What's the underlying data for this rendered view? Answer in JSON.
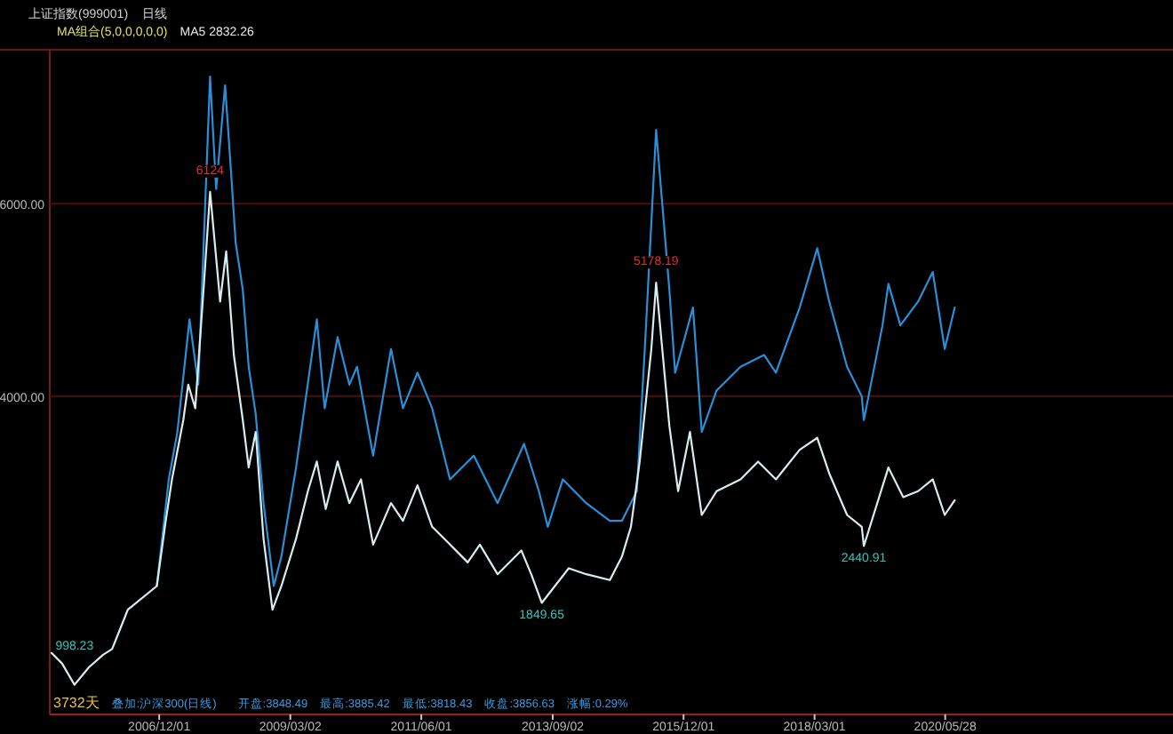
{
  "chart_data": {
    "type": "line",
    "title": "上证指数(999001)",
    "annotations": [
      "日线",
      "MA组合(5,0,0,0,0,0)",
      "MA5 2832.26",
      "3732天",
      "叠加:沪深300(日线)",
      "开盘:3848.49",
      "最高:3885.42",
      "最低:3818.43",
      "收盘:3856.63",
      "涨幅:0.29%",
      {
        "text": "6124",
        "x": "2007-10-16",
        "y": 6124
      },
      {
        "text": "5178.19",
        "x": "2015-06-12",
        "y": 5178.19
      },
      {
        "text": "1849.65",
        "x": "2013-06-25",
        "y": 1849.65
      },
      {
        "text": "2440.91",
        "x": "2019-01-04",
        "y": 2440.91
      },
      {
        "text": "998.23",
        "x": "2005-06-18",
        "y": 998.23
      }
    ],
    "xlim": [
      "2005-01-14",
      "2024-04-25"
    ],
    "xticks": [
      {
        "value": "2006-12-01",
        "label": "2006/12/01"
      },
      {
        "value": "2009-03-02",
        "label": "2009/03/02"
      },
      {
        "value": "2011-06-01",
        "label": "2011/06/01"
      },
      {
        "value": "2013-09-02",
        "label": "2013/09/02"
      },
      {
        "value": "2015-12-01",
        "label": "2015/12/01"
      },
      {
        "value": "2018-03-01",
        "label": "2018/03/01"
      },
      {
        "value": "2020-05-28",
        "label": "2020/05/28"
      }
    ],
    "ylim": [
      690,
      7600
    ],
    "yticks": [
      {
        "value": 4000,
        "label": "4000.00"
      },
      {
        "value": 6000,
        "label": "6000.00"
      }
    ],
    "grid": "y",
    "marker": "none",
    "line_style": "solid",
    "series": [
      {
        "color": "#2b8fd8",
        "x": [
          "2006-11-16",
          "2007-01-30",
          "2007-03-25",
          "2007-06-09",
          "2007-08-03",
          "2007-10-16",
          "2007-11-23",
          "2008-01-18",
          "2008-02-24",
          "2008-03-24",
          "2008-05-08",
          "2008-06-14",
          "2008-07-28",
          "2008-09-15",
          "2008-11-18",
          "2009-01-05",
          "2009-04-07",
          "2009-08-15",
          "2009-10-03",
          "2009-12-23",
          "2010-03-07",
          "2010-04-24",
          "2010-08-03",
          "2010-11-23",
          "2011-02-06",
          "2011-05-08",
          "2011-08-08",
          "2011-11-28",
          "2012-04-25",
          "2012-09-21",
          "2013-03-06",
          "2013-06-07",
          "2013-08-02",
          "2013-11-04",
          "2014-03-31",
          "2014-08-26",
          "2014-11-10",
          "2015-02-11",
          "2015-04-06",
          "2015-06-12",
          "2015-09-03",
          "2015-10-09",
          "2016-01-29",
          "2016-03-24",
          "2016-06-25",
          "2016-11-22",
          "2017-04-18",
          "2017-07-02",
          "2017-11-28",
          "2018-03-18",
          "2018-06-01",
          "2018-09-21",
          "2018-12-22",
          "2019-01-04",
          "2019-05-01",
          "2019-06-07",
          "2019-08-21",
          "2019-12-10",
          "2020-03-11",
          "2020-05-25",
          "2020-07-27"
        ],
        "values": [
          2025,
          3134,
          3627,
          4797,
          4119,
          7323,
          6152,
          7230,
          6337,
          5598,
          5105,
          4304,
          3811,
          2887,
          2025,
          2333,
          3257,
          4797,
          3873,
          4612,
          4119,
          4304,
          3380,
          4489,
          3873,
          4243,
          3873,
          3134,
          3380,
          2887,
          3503,
          3011,
          2641,
          3134,
          2887,
          2703,
          2703,
          3011,
          4612,
          6768,
          5105,
          4243,
          4920,
          3627,
          4058,
          4304,
          4427,
          4243,
          4920,
          5536,
          4982,
          4304,
          3996,
          3750,
          4735,
          5167,
          4735,
          4982,
          5290,
          4489,
          4920
        ]
      },
      {
        "color": "#d8eeee",
        "x": [
          "2005-01-25",
          "2005-04-01",
          "2005-06-18",
          "2005-09-16",
          "2005-12-14",
          "2006-02-09",
          "2006-05-18",
          "2006-11-16",
          "2007-01-11",
          "2007-02-19",
          "2007-05-01",
          "2007-06-01",
          "2007-07-15",
          "2007-09-10",
          "2007-10-16",
          "2007-12-18",
          "2008-01-25",
          "2008-03-13",
          "2008-05-08",
          "2008-06-14",
          "2008-07-28",
          "2008-09-15",
          "2008-11-10",
          "2009-01-05",
          "2009-04-07",
          "2009-06-20",
          "2009-08-15",
          "2009-10-10",
          "2009-12-23",
          "2010-03-07",
          "2010-05-19",
          "2010-08-03",
          "2010-11-23",
          "2011-02-06",
          "2011-05-08",
          "2011-08-08",
          "2011-11-28",
          "2012-03-18",
          "2012-06-02",
          "2012-09-21",
          "2013-02-17",
          "2013-04-20",
          "2013-06-25",
          "2013-12-11",
          "2014-03-31",
          "2014-08-26",
          "2014-11-10",
          "2015-01-05",
          "2015-03-01",
          "2015-05-13",
          "2015-06-12",
          "2015-09-03",
          "2015-10-28",
          "2016-01-10",
          "2016-03-24",
          "2016-06-25",
          "2016-11-22",
          "2017-03-12",
          "2017-07-02",
          "2017-11-28",
          "2018-03-18",
          "2018-06-01",
          "2018-09-21",
          "2018-12-22",
          "2019-01-04",
          "2019-06-07",
          "2019-09-08",
          "2019-12-10",
          "2020-03-11",
          "2020-05-25",
          "2020-07-27"
        ],
        "values": [
          1330,
          1220,
          998.23,
          1180,
          1310,
          1370,
          1778,
          2025,
          2703,
          3134,
          3750,
          4119,
          3873,
          5228,
          6124,
          4982,
          5505,
          4427,
          3750,
          3257,
          3627,
          2518,
          1779,
          2025,
          2518,
          3011,
          3319,
          2826,
          3319,
          2887,
          3134,
          2456,
          2887,
          2703,
          3072,
          2641,
          2456,
          2271,
          2456,
          2148,
          2395,
          2148,
          1849.65,
          2210,
          2148,
          2087,
          2333,
          2641,
          3319,
          4489,
          5178.19,
          3688,
          3011,
          3627,
          2764,
          3011,
          3134,
          3319,
          3134,
          3442,
          3565,
          3196,
          2764,
          2641,
          2440.91,
          3257,
          2949,
          3011,
          3134,
          2764,
          2918
        ]
      }
    ]
  }
}
